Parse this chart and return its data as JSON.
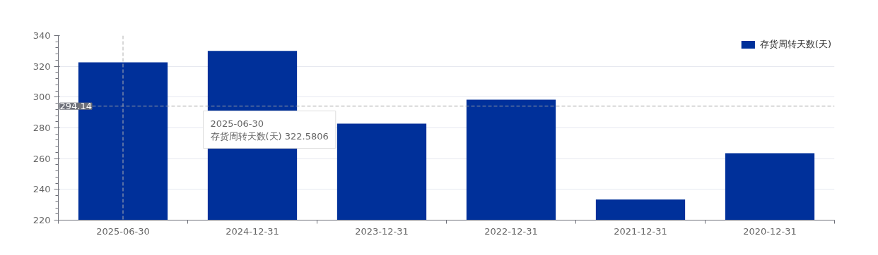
{
  "chart_data": {
    "type": "bar",
    "categories": [
      "2025-06-30",
      "2024-12-31",
      "2023-12-31",
      "2022-12-31",
      "2021-12-31",
      "2020-12-31"
    ],
    "series": [
      {
        "name": "存货周转天数(天)",
        "color": "#00309a",
        "values": [
          322.5806,
          330.0,
          282.8,
          298.3,
          233.4,
          263.5
        ]
      }
    ],
    "ylim": [
      220,
      340
    ],
    "yticks": [
      220,
      240,
      260,
      280,
      300,
      320,
      340
    ],
    "grid": "y",
    "legend": "top right",
    "ref_lines": [
      {
        "axis": "y",
        "value": 294.14,
        "label": "294.14",
        "color": "#a0a0a0",
        "line_style": "dashed"
      },
      {
        "axis": "x",
        "value": "2025-06-30",
        "label": null,
        "color": "#b0b0b0",
        "line_style": "dashed"
      }
    ],
    "annotations": [
      "2025-06-30",
      "存货周转天数(天) 322.5806"
    ]
  }
}
